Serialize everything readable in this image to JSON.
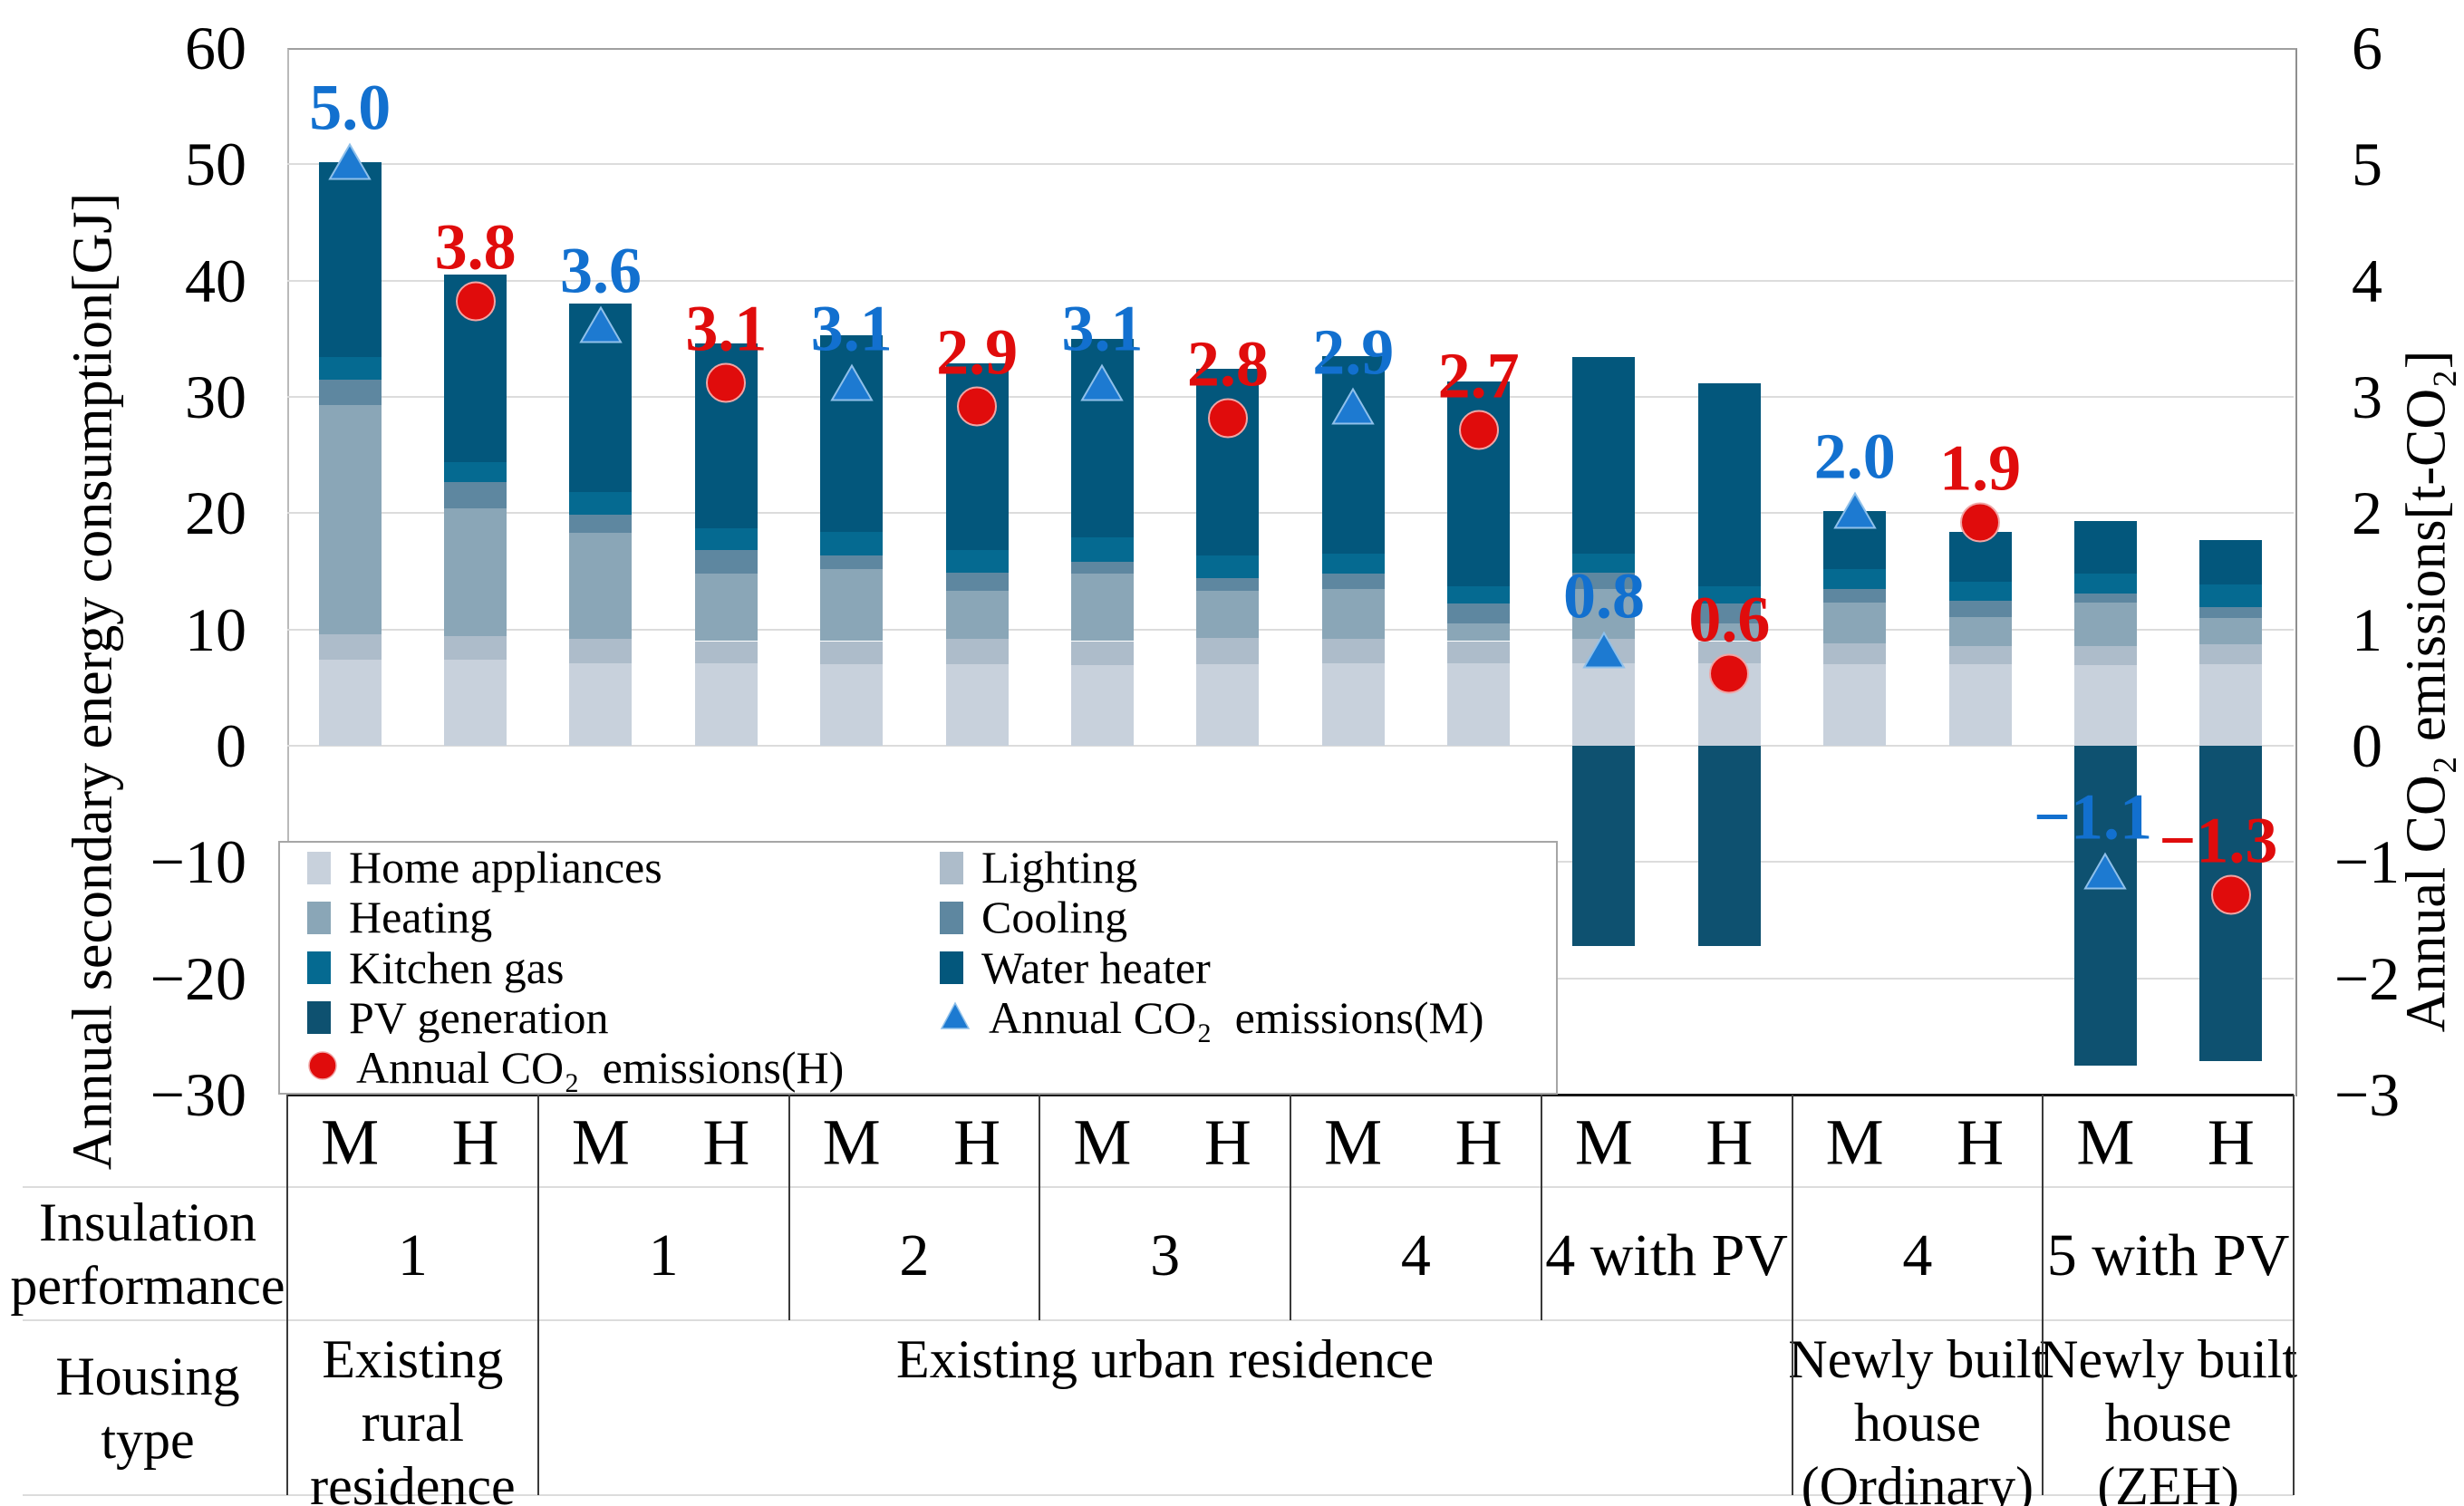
{
  "chart_data": {
    "type": "bar",
    "stacked": true,
    "title": "",
    "y_left": {
      "title": "Annual secondary energy consumption[GJ]",
      "min": -30,
      "max": 60,
      "tick_step": 10,
      "ticks": [
        "60",
        "50",
        "40",
        "30",
        "20",
        "10",
        "0",
        "−10",
        "−20",
        "−30"
      ],
      "tick_values": [
        60,
        50,
        40,
        30,
        20,
        10,
        0,
        -10,
        -20,
        -30
      ]
    },
    "y_right": {
      "title": "Annual CO₂ emissions[t-CO₂]",
      "min": -3,
      "max": 6,
      "tick_step": 1,
      "ticks": [
        "6",
        "5",
        "4",
        "3",
        "2",
        "1",
        "0",
        "−1",
        "−2",
        "−3"
      ],
      "tick_values": [
        6,
        5,
        4,
        3,
        2,
        1,
        0,
        -1,
        -2,
        -3
      ]
    },
    "grid_values": [
      50,
      40,
      30,
      20,
      10,
      0,
      -10,
      -20
    ],
    "series": [
      {
        "key": "home_appliances",
        "label": "Home appliances",
        "color": "#c8d1dc"
      },
      {
        "key": "lighting",
        "label": "Lighting",
        "color": "#adbcca"
      },
      {
        "key": "heating",
        "label": "Heating",
        "color": "#8aa6b7"
      },
      {
        "key": "cooling",
        "label": "Cooling",
        "color": "#5e87a0"
      },
      {
        "key": "kitchen_gas",
        "label": "Kitchen gas",
        "color": "#056a91"
      },
      {
        "key": "water_heater",
        "label": "Water heater",
        "color": "#03577c"
      },
      {
        "key": "pv_generation",
        "label": "PV generation",
        "color": "#0e5170"
      }
    ],
    "marker_series": [
      {
        "key": "co2_m",
        "label": "Annual CO₂  emissions(M)",
        "shape": "triangle",
        "color": "#1d7ad1",
        "edge": "#8fc0ea",
        "text_color": "#1270cf"
      },
      {
        "key": "co2_h",
        "label": "Annual CO₂  emissions(H)",
        "shape": "circle",
        "color": "#e00c0c",
        "edge": "#f0a5a5",
        "text_color": "#e00c0c"
      }
    ],
    "bars": [
      {
        "group": 0,
        "city": "M",
        "segments": [
          7.4,
          2.2,
          19.7,
          2.2,
          1.9,
          16.8,
          0
        ],
        "total": 50.2,
        "co2": 5.0,
        "co2_label": "5.0"
      },
      {
        "group": 0,
        "city": "H",
        "segments": [
          7.4,
          2.0,
          11.0,
          2.3,
          1.7,
          16.1,
          0
        ],
        "total": 40.5,
        "co2": 3.8,
        "co2_label": "3.8"
      },
      {
        "group": 1,
        "city": "M",
        "segments": [
          7.1,
          2.1,
          9.1,
          1.6,
          1.9,
          16.2,
          0
        ],
        "total": 38.0,
        "co2": 3.6,
        "co2_label": "3.6"
      },
      {
        "group": 1,
        "city": "H",
        "segments": [
          7.1,
          1.9,
          5.8,
          2.0,
          1.9,
          15.9,
          0
        ],
        "total": 34.6,
        "co2": 3.1,
        "co2_label": "3.1"
      },
      {
        "group": 2,
        "city": "M",
        "segments": [
          7.0,
          2.0,
          6.2,
          1.2,
          2.0,
          16.9,
          0
        ],
        "total": 35.3,
        "co2": 3.1,
        "co2_label": "3.1"
      },
      {
        "group": 2,
        "city": "H",
        "segments": [
          7.0,
          2.2,
          4.1,
          1.6,
          1.9,
          16.1,
          0
        ],
        "total": 32.9,
        "co2": 2.9,
        "co2_label": "2.9"
      },
      {
        "group": 3,
        "city": "M",
        "segments": [
          6.9,
          2.1,
          5.8,
          1.0,
          2.1,
          17.1,
          0
        ],
        "total": 35.0,
        "co2": 3.1,
        "co2_label": "3.1"
      },
      {
        "group": 3,
        "city": "H",
        "segments": [
          7.0,
          2.3,
          4.0,
          1.1,
          2.0,
          16.0,
          0
        ],
        "total": 32.4,
        "co2": 2.8,
        "co2_label": "2.8"
      },
      {
        "group": 4,
        "city": "M",
        "segments": [
          7.1,
          2.1,
          4.3,
          1.3,
          1.7,
          17.0,
          0
        ],
        "total": 33.5,
        "co2": 2.9,
        "co2_label": "2.9"
      },
      {
        "group": 4,
        "city": "H",
        "segments": [
          7.1,
          1.9,
          1.5,
          1.7,
          1.5,
          17.6,
          0
        ],
        "total": 31.3,
        "co2": 2.7,
        "co2_label": "2.7"
      },
      {
        "group": 5,
        "city": "M",
        "segments": [
          7.1,
          2.1,
          4.3,
          1.4,
          1.6,
          16.9,
          -17.2
        ],
        "total": 33.4,
        "co2": 0.8,
        "co2_label": "0.8"
      },
      {
        "group": 5,
        "city": "H",
        "segments": [
          7.1,
          1.9,
          1.5,
          1.7,
          1.5,
          17.5,
          -17.2
        ],
        "total": 31.2,
        "co2": 0.6,
        "co2_label": "0.6"
      },
      {
        "group": 6,
        "city": "M",
        "segments": [
          7.0,
          1.8,
          3.5,
          1.2,
          1.7,
          5.0,
          0
        ],
        "total": 20.2,
        "co2": 2.0,
        "co2_label": "2.0"
      },
      {
        "group": 6,
        "city": "H",
        "segments": [
          7.0,
          1.6,
          2.5,
          1.4,
          1.6,
          4.3,
          0
        ],
        "total": 18.4,
        "co2": 1.9,
        "co2_label": "1.9"
      },
      {
        "group": 7,
        "city": "M",
        "segments": [
          6.9,
          1.7,
          3.7,
          0.8,
          1.7,
          4.5,
          -27.5
        ],
        "total": 19.3,
        "co2": -1.1,
        "co2_label": "−1.1"
      },
      {
        "group": 7,
        "city": "H",
        "segments": [
          7.0,
          1.7,
          2.3,
          0.9,
          2.0,
          3.8,
          -27.1
        ],
        "total": 17.7,
        "co2": -1.3,
        "co2_label": "−1.3"
      }
    ],
    "legend_columns": [
      [
        "home_appliances",
        "heating",
        "kitchen_gas",
        "pv_generation",
        "co2_h"
      ],
      [
        "lighting",
        "cooling",
        "water_heater",
        "co2_m"
      ]
    ]
  },
  "x_table": {
    "city_labels": [
      "M",
      "H"
    ],
    "insulation_header_lines": [
      "Insulation",
      "performance"
    ],
    "insulation_cells": [
      {
        "label": "1",
        "span": 1
      },
      {
        "label": "1",
        "span": 1
      },
      {
        "label": "2",
        "span": 1
      },
      {
        "label": "3",
        "span": 1
      },
      {
        "label": "4",
        "span": 1
      },
      {
        "label": "4 with PV",
        "span": 1
      },
      {
        "label": "4",
        "span": 1
      },
      {
        "label": "5 with PV",
        "span": 1
      }
    ],
    "housing_header_lines": [
      "Housing",
      "type"
    ],
    "housing_cells": [
      {
        "lines": [
          "Existing",
          "rural",
          "residence"
        ],
        "span": 1
      },
      {
        "lines": [
          "Existing urban residence"
        ],
        "span": 5
      },
      {
        "lines": [
          "Newly built",
          "house",
          "(Ordinary)"
        ],
        "span": 1
      },
      {
        "lines": [
          "Newly built",
          "house",
          "(ZEH)"
        ],
        "span": 1
      }
    ]
  },
  "colors": {
    "gridline": "#dcdcdc",
    "plot_border": "#a0a0a0",
    "axis_line": "#161616",
    "table_divider": "#3a3a3a",
    "table_rule": "#dcdcdc",
    "background": "#ffffff"
  }
}
